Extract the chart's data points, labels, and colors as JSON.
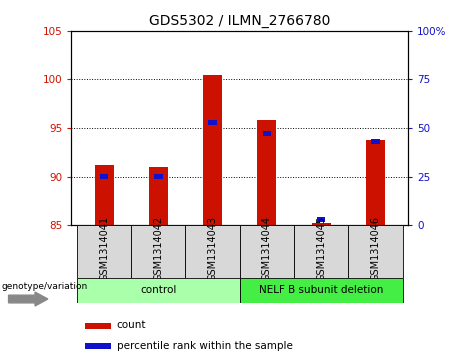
{
  "title": "GDS5302 / ILMN_2766780",
  "samples": [
    "GSM1314041",
    "GSM1314042",
    "GSM1314043",
    "GSM1314044",
    "GSM1314045",
    "GSM1314046"
  ],
  "count_values": [
    91.2,
    91.0,
    100.5,
    95.8,
    85.2,
    93.8
  ],
  "percentile_values": [
    25,
    25,
    53,
    47,
    3,
    43
  ],
  "ylim_left": [
    85,
    105
  ],
  "ylim_right": [
    0,
    100
  ],
  "yticks_left": [
    85,
    90,
    95,
    100,
    105
  ],
  "yticks_right": [
    0,
    25,
    50,
    75,
    100
  ],
  "ytick_labels_right": [
    "0",
    "25",
    "50",
    "75",
    "100%"
  ],
  "bar_color": "#cc1100",
  "percentile_color": "#1111cc",
  "grid_yticks": [
    90,
    95,
    100
  ],
  "groups": [
    {
      "label": "control",
      "indices": [
        0,
        1,
        2
      ],
      "color": "#aaffaa"
    },
    {
      "label": "NELF B subunit deletion",
      "indices": [
        3,
        4,
        5
      ],
      "color": "#44ee44"
    }
  ],
  "genotype_label": "genotype/variation",
  "legend_count_label": "count",
  "legend_percentile_label": "percentile rank within the sample",
  "title_fontsize": 10,
  "tick_fontsize": 7.5,
  "label_fontsize": 7,
  "group_fontsize": 7.5,
  "legend_fontsize": 7.5,
  "bar_width": 0.35
}
